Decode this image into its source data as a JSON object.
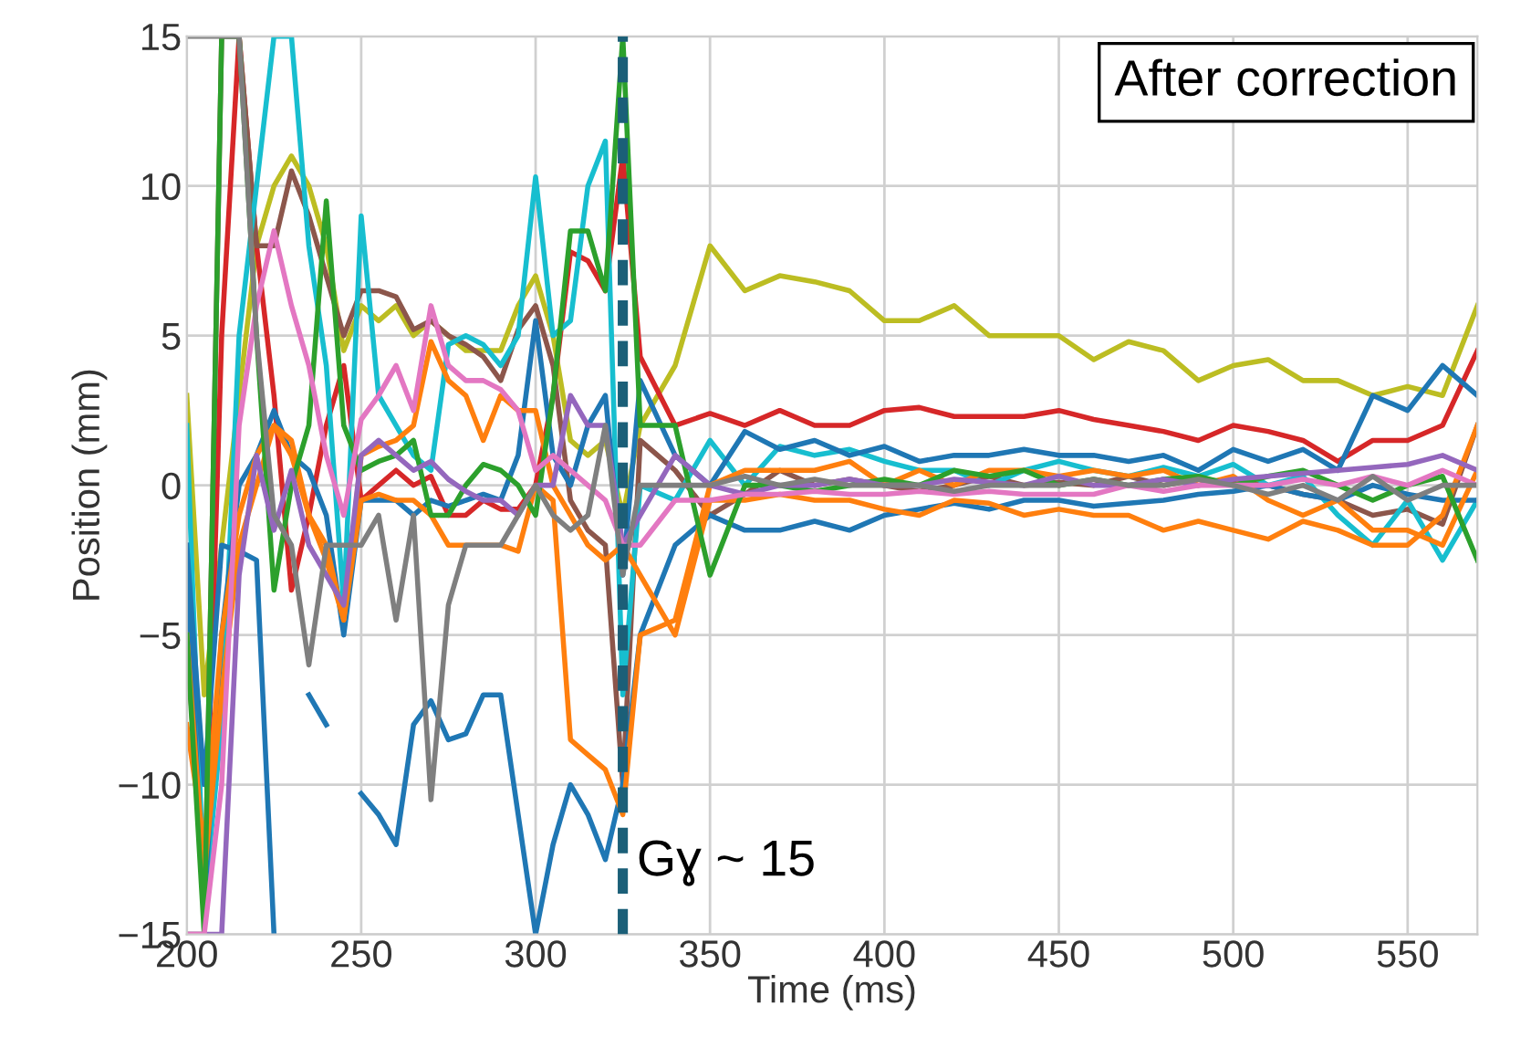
{
  "chart_data": {
    "type": "line",
    "xlabel": "Time (ms)",
    "ylabel": "Position (mm)",
    "x": [
      200,
      205,
      210,
      215,
      220,
      225,
      230,
      235,
      240,
      245,
      250,
      255,
      260,
      265,
      270,
      275,
      280,
      285,
      290,
      295,
      300,
      305,
      310,
      315,
      320,
      325,
      330,
      340,
      350,
      360,
      370,
      380,
      390,
      400,
      410,
      420,
      430,
      440,
      450,
      460,
      470,
      480,
      490,
      500,
      510,
      520,
      530,
      540,
      550,
      560,
      570
    ],
    "xlim": [
      200,
      570
    ],
    "ylim": [
      -15,
      15
    ],
    "xticks": [
      200,
      250,
      300,
      350,
      400,
      450,
      500,
      550
    ],
    "yticks": [
      {
        "value": -15,
        "label": "−15"
      },
      {
        "value": -10,
        "label": "−10"
      },
      {
        "value": -5,
        "label": "−5"
      },
      0,
      5,
      10,
      15
    ],
    "grid": true,
    "legend": false,
    "line_style": "solid",
    "series": [
      {
        "color": "#bcbd22",
        "values": [
          3,
          -7,
          -2,
          3,
          8,
          10,
          11,
          10,
          8,
          4.5,
          6,
          5.5,
          6,
          5,
          5.5,
          5,
          4.5,
          4.5,
          4.5,
          6,
          7,
          5,
          1.5,
          1,
          1.5,
          -1,
          2,
          4,
          8,
          6.5,
          7,
          6.8,
          6.5,
          5.5,
          5.5,
          6,
          5,
          5,
          5,
          4.2,
          4.8,
          4.5,
          3.5,
          4,
          4.2,
          3.5,
          3.5,
          3,
          3.3,
          3,
          6
        ]
      },
      {
        "color": "#d62728",
        "values": [
          -5,
          -14,
          5,
          15,
          8,
          3,
          -3.5,
          -1,
          2,
          4,
          -0.5,
          0,
          0.5,
          0,
          0.3,
          -1,
          -1,
          -0.5,
          -0.8,
          -0.8,
          0,
          3,
          7.8,
          7.5,
          6.5,
          11,
          4.3,
          2,
          2.4,
          2,
          2.5,
          2,
          2,
          2.5,
          2.6,
          2.3,
          2.3,
          2.3,
          2.5,
          2.2,
          2,
          1.8,
          1.5,
          2,
          1.8,
          1.5,
          0.8,
          1.5,
          1.5,
          2,
          4.5
        ]
      },
      {
        "color": "#8c564b",
        "values": [
          -15,
          -15,
          15,
          15,
          8,
          8,
          10.5,
          9,
          7,
          5,
          6.5,
          6.5,
          6.3,
          5.2,
          5.5,
          5,
          4.7,
          4.3,
          3.5,
          5.2,
          6,
          4,
          -0.5,
          -1.5,
          -2,
          -10,
          1.5,
          0.5,
          -1,
          -0.3,
          0.5,
          0,
          0.2,
          0,
          -0.2,
          0,
          0.3,
          0,
          0.1,
          0,
          0.3,
          0,
          0.2,
          0.1,
          0,
          -0.3,
          -0.5,
          -1,
          -0.8,
          -1.3,
          2
        ]
      },
      {
        "color": "#17becf",
        "values": [
          2,
          -14,
          -8,
          5,
          10,
          15,
          15,
          8,
          4,
          -4,
          9,
          3,
          2,
          1,
          0.5,
          4.7,
          5,
          4.7,
          4,
          5,
          10.3,
          5,
          5.5,
          10,
          11.5,
          -7,
          0,
          -0.5,
          1.5,
          0,
          1.3,
          1,
          1.2,
          0.8,
          0.5,
          0.5,
          0,
          0.5,
          0.8,
          0.5,
          0.3,
          0.6,
          0.3,
          0.7,
          0,
          0.3,
          -1,
          -2,
          -0.5,
          -2.5,
          -0.5
        ]
      },
      {
        "color": "#1f77b4",
        "values": [
          -2,
          -10,
          -2,
          -2.2,
          -2.5,
          -15,
          null,
          -7,
          -8,
          null,
          -10.3,
          -11,
          -12,
          -8,
          -7.2,
          -8.5,
          -8.3,
          -7,
          -7,
          -11,
          -15,
          -12,
          -10,
          -11,
          -12.5,
          -10,
          -5,
          -2,
          -1,
          -1.5,
          -1.5,
          -1.2,
          -1.5,
          -1,
          -0.8,
          -0.6,
          -0.8,
          -0.5,
          -0.5,
          -0.7,
          -0.6,
          -0.5,
          -0.3,
          -0.2,
          0,
          -0.3,
          -0.5,
          0,
          -0.3,
          -0.5,
          -0.5
        ]
      },
      {
        "color": "#1f77b4",
        "values": [
          -3,
          -14,
          -5,
          0,
          1,
          2.5,
          1,
          0.5,
          -1,
          -5,
          -0.5,
          -0.5,
          -0.5,
          -1,
          -0.5,
          -0.7,
          -0.5,
          -0.3,
          -0.5,
          1,
          5.5,
          1,
          0,
          2,
          3,
          -3,
          3.5,
          1,
          0,
          1.8,
          1.2,
          1.5,
          1,
          1.3,
          0.8,
          1,
          1,
          1.2,
          1,
          1,
          0.8,
          1,
          0.5,
          1.2,
          0.8,
          1.2,
          0.5,
          3,
          2.5,
          4,
          3
        ]
      },
      {
        "color": "#ff7f0e",
        "values": [
          -5,
          -13,
          -7,
          -2,
          0,
          2,
          1,
          -1,
          -2.5,
          -4.5,
          -0.5,
          -0.3,
          -0.5,
          -0.5,
          -1,
          -2,
          -2,
          -2,
          -2,
          -2.2,
          0,
          -0.5,
          -8.5,
          -9,
          -9.5,
          -11,
          -5,
          -4.5,
          0,
          0.5,
          0.5,
          0.5,
          0.8,
          0,
          0.5,
          0,
          0.5,
          0.5,
          0.3,
          0.5,
          0.3,
          0.5,
          0,
          0.3,
          -0.5,
          -1,
          -0.5,
          -1.5,
          -1.5,
          -2,
          0.5
        ]
      },
      {
        "color": "#ff7f0e",
        "values": [
          -8,
          -12,
          -5,
          -1,
          1,
          2,
          1.5,
          -1,
          -2,
          -4.5,
          1,
          1.3,
          1.5,
          2,
          4.8,
          3.5,
          3,
          1.5,
          3,
          2.5,
          2.5,
          0,
          -1,
          -2,
          -2.5,
          -2,
          -3,
          -5,
          -0.5,
          -0.5,
          -0.3,
          -0.5,
          -0.5,
          -0.8,
          -1,
          -0.5,
          -0.6,
          -1,
          -0.8,
          -1,
          -1,
          -1.5,
          -1.2,
          -1.5,
          -1.8,
          -1.2,
          -1.5,
          -2,
          -2,
          -1,
          2
        ]
      },
      {
        "color": "#2ca02c",
        "values": [
          -5,
          -15,
          15,
          15,
          5,
          -3.5,
          0,
          2,
          9.5,
          2,
          0.5,
          0.8,
          1,
          1.5,
          -1,
          -1,
          0,
          0.7,
          0.5,
          0,
          -1,
          3,
          8.5,
          8.5,
          6.5,
          15,
          2,
          2,
          -3,
          0,
          0,
          -0.2,
          0,
          0.2,
          0,
          0.5,
          0.3,
          0.5,
          0,
          0.2,
          0,
          0.2,
          0.3,
          0,
          0.3,
          0.5,
          0,
          -0.5,
          0,
          0.3,
          -2.5
        ]
      },
      {
        "color": "#9467bd",
        "values": [
          -15,
          -15,
          -15,
          -3,
          1,
          -1.5,
          0.5,
          -2,
          -3,
          -4,
          1,
          1.5,
          1,
          0.5,
          0.8,
          0.2,
          -0.2,
          -0.5,
          -0.5,
          -1,
          0,
          0,
          3,
          2,
          2,
          -2,
          -1,
          1,
          0,
          -0.3,
          0,
          0,
          0.2,
          0,
          0,
          0.2,
          0.1,
          0,
          0.3,
          0,
          0,
          0.2,
          0,
          0.2,
          0.3,
          0.4,
          0.5,
          0.6,
          0.7,
          1,
          0.5
        ]
      },
      {
        "color": "#e377c2",
        "values": [
          -15,
          -15,
          -10,
          2,
          6,
          8.5,
          6,
          4,
          1,
          -1,
          2.2,
          3,
          4,
          2.5,
          6,
          4,
          3.5,
          3.5,
          3.2,
          2.5,
          0.5,
          1,
          0.5,
          0,
          -0.5,
          -2,
          -2,
          -0.5,
          -0.5,
          -0.3,
          -0.3,
          -0.2,
          -0.3,
          -0.3,
          -0.2,
          -0.3,
          -0.2,
          -0.3,
          -0.3,
          -0.3,
          0,
          -0.2,
          0,
          0,
          0,
          0.2,
          0,
          0.3,
          0,
          0.5,
          0
        ]
      },
      {
        "color": "#7f7f7f",
        "values": [
          15,
          15,
          15,
          15,
          5,
          -1,
          -2,
          -6,
          -2,
          -2,
          -2,
          -1,
          -4.5,
          -1,
          -10.5,
          -4,
          -2,
          -2,
          -2,
          -1,
          0,
          -1,
          -1.5,
          -1,
          2,
          -3,
          0,
          0,
          0,
          0.3,
          0,
          0.2,
          0,
          0,
          0,
          -0.2,
          0,
          0,
          0,
          0.2,
          0,
          0,
          0.2,
          0,
          -0.3,
          0,
          -0.5,
          0.3,
          -0.5,
          0,
          0
        ]
      }
    ],
    "ref_lines": [
      {
        "axis": "x",
        "value": 325,
        "label": "Gɣ ~ 15",
        "color": "#1b5f78",
        "line_style": "dashed"
      }
    ],
    "annotations": [
      "After correction"
    ]
  }
}
